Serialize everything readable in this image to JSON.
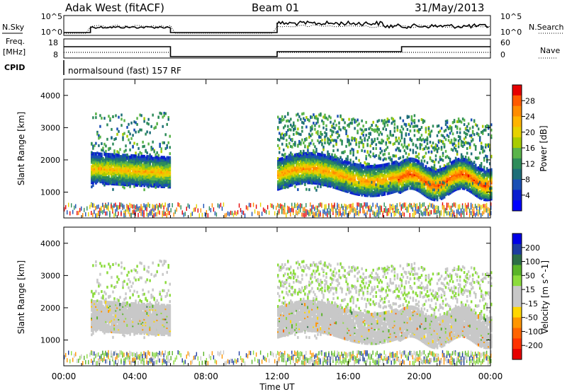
{
  "header": {
    "station": "Adak West (fitACF)",
    "beam": "Beam 01",
    "date": "31/May/2013"
  },
  "panels": {
    "nsky": {
      "left_label": "N.Sky",
      "right_label": "N.Search",
      "left_ticks": [
        "10^5",
        "10^0"
      ],
      "right_ticks": [
        "10^5",
        "10^0"
      ]
    },
    "freq": {
      "left_label_line1": "Freq.",
      "left_label_line2": "[MHz]",
      "right_label": "Nave",
      "left_ticks": [
        "18",
        "8"
      ],
      "right_ticks": [
        "60",
        "0"
      ]
    },
    "cpid": {
      "label": "CPID",
      "text": "normalsound (fast) 157 RF"
    }
  },
  "chart_data": [
    {
      "type": "heatmap",
      "parameter": "Power",
      "ylabel": "Slant Range [km]",
      "ylim": [
        200,
        4500
      ],
      "yticks": [
        "4000",
        "3000",
        "2000",
        "1000"
      ],
      "colorbar": {
        "label": "Power [dB]",
        "ticks": [
          "28",
          "24",
          "20",
          "16",
          "12",
          "8",
          "4"
        ],
        "colors": [
          "#e60000",
          "#ff5a00",
          "#ff8c00",
          "#ffb400",
          "#e6d200",
          "#a8cc00",
          "#5ab44a",
          "#2e8c5a",
          "#1e6e78",
          "#1a4fb4",
          "#0a1ecf",
          "#0000ff"
        ]
      },
      "data_coverage": [
        {
          "start": "01:30",
          "end": "06:00"
        },
        {
          "start": "12:00",
          "end": "24:00"
        }
      ],
      "echo_bands": [
        {
          "start": "01:30",
          "end": "06:00",
          "range_km": 1800,
          "peak_db": 22
        },
        {
          "start": "12:00",
          "end": "18:45",
          "range_km": 1600,
          "peak_db": 24
        },
        {
          "start": "18:45",
          "end": "24:00",
          "range_km": 1500,
          "peak_db": 28
        }
      ]
    },
    {
      "type": "heatmap",
      "parameter": "Velocity",
      "ylabel": "Slant Range [km]",
      "ylim": [
        200,
        4500
      ],
      "yticks": [
        "4000",
        "3000",
        "2000",
        "1000"
      ],
      "colorbar": {
        "label": "Velocity [m s^-1]",
        "ticks": [
          "200",
          "100",
          "50",
          "15",
          "-15",
          "-50",
          "-100",
          "-200"
        ],
        "colors": [
          "#0000e6",
          "#1e3ca0",
          "#2d6e46",
          "#5ab428",
          "#8cdc3c",
          "#c8c8c8",
          "#c8c8c8",
          "#ffd700",
          "#ff9600",
          "#ff6400",
          "#ff3200",
          "#e60000"
        ]
      },
      "data_coverage": [
        {
          "start": "01:30",
          "end": "06:00"
        },
        {
          "start": "12:00",
          "end": "24:00"
        }
      ]
    }
  ],
  "xaxis": {
    "label": "Time UT",
    "ticks": [
      "00:00",
      "04:00",
      "08:00",
      "12:00",
      "16:00",
      "20:00",
      "00:00"
    ]
  }
}
